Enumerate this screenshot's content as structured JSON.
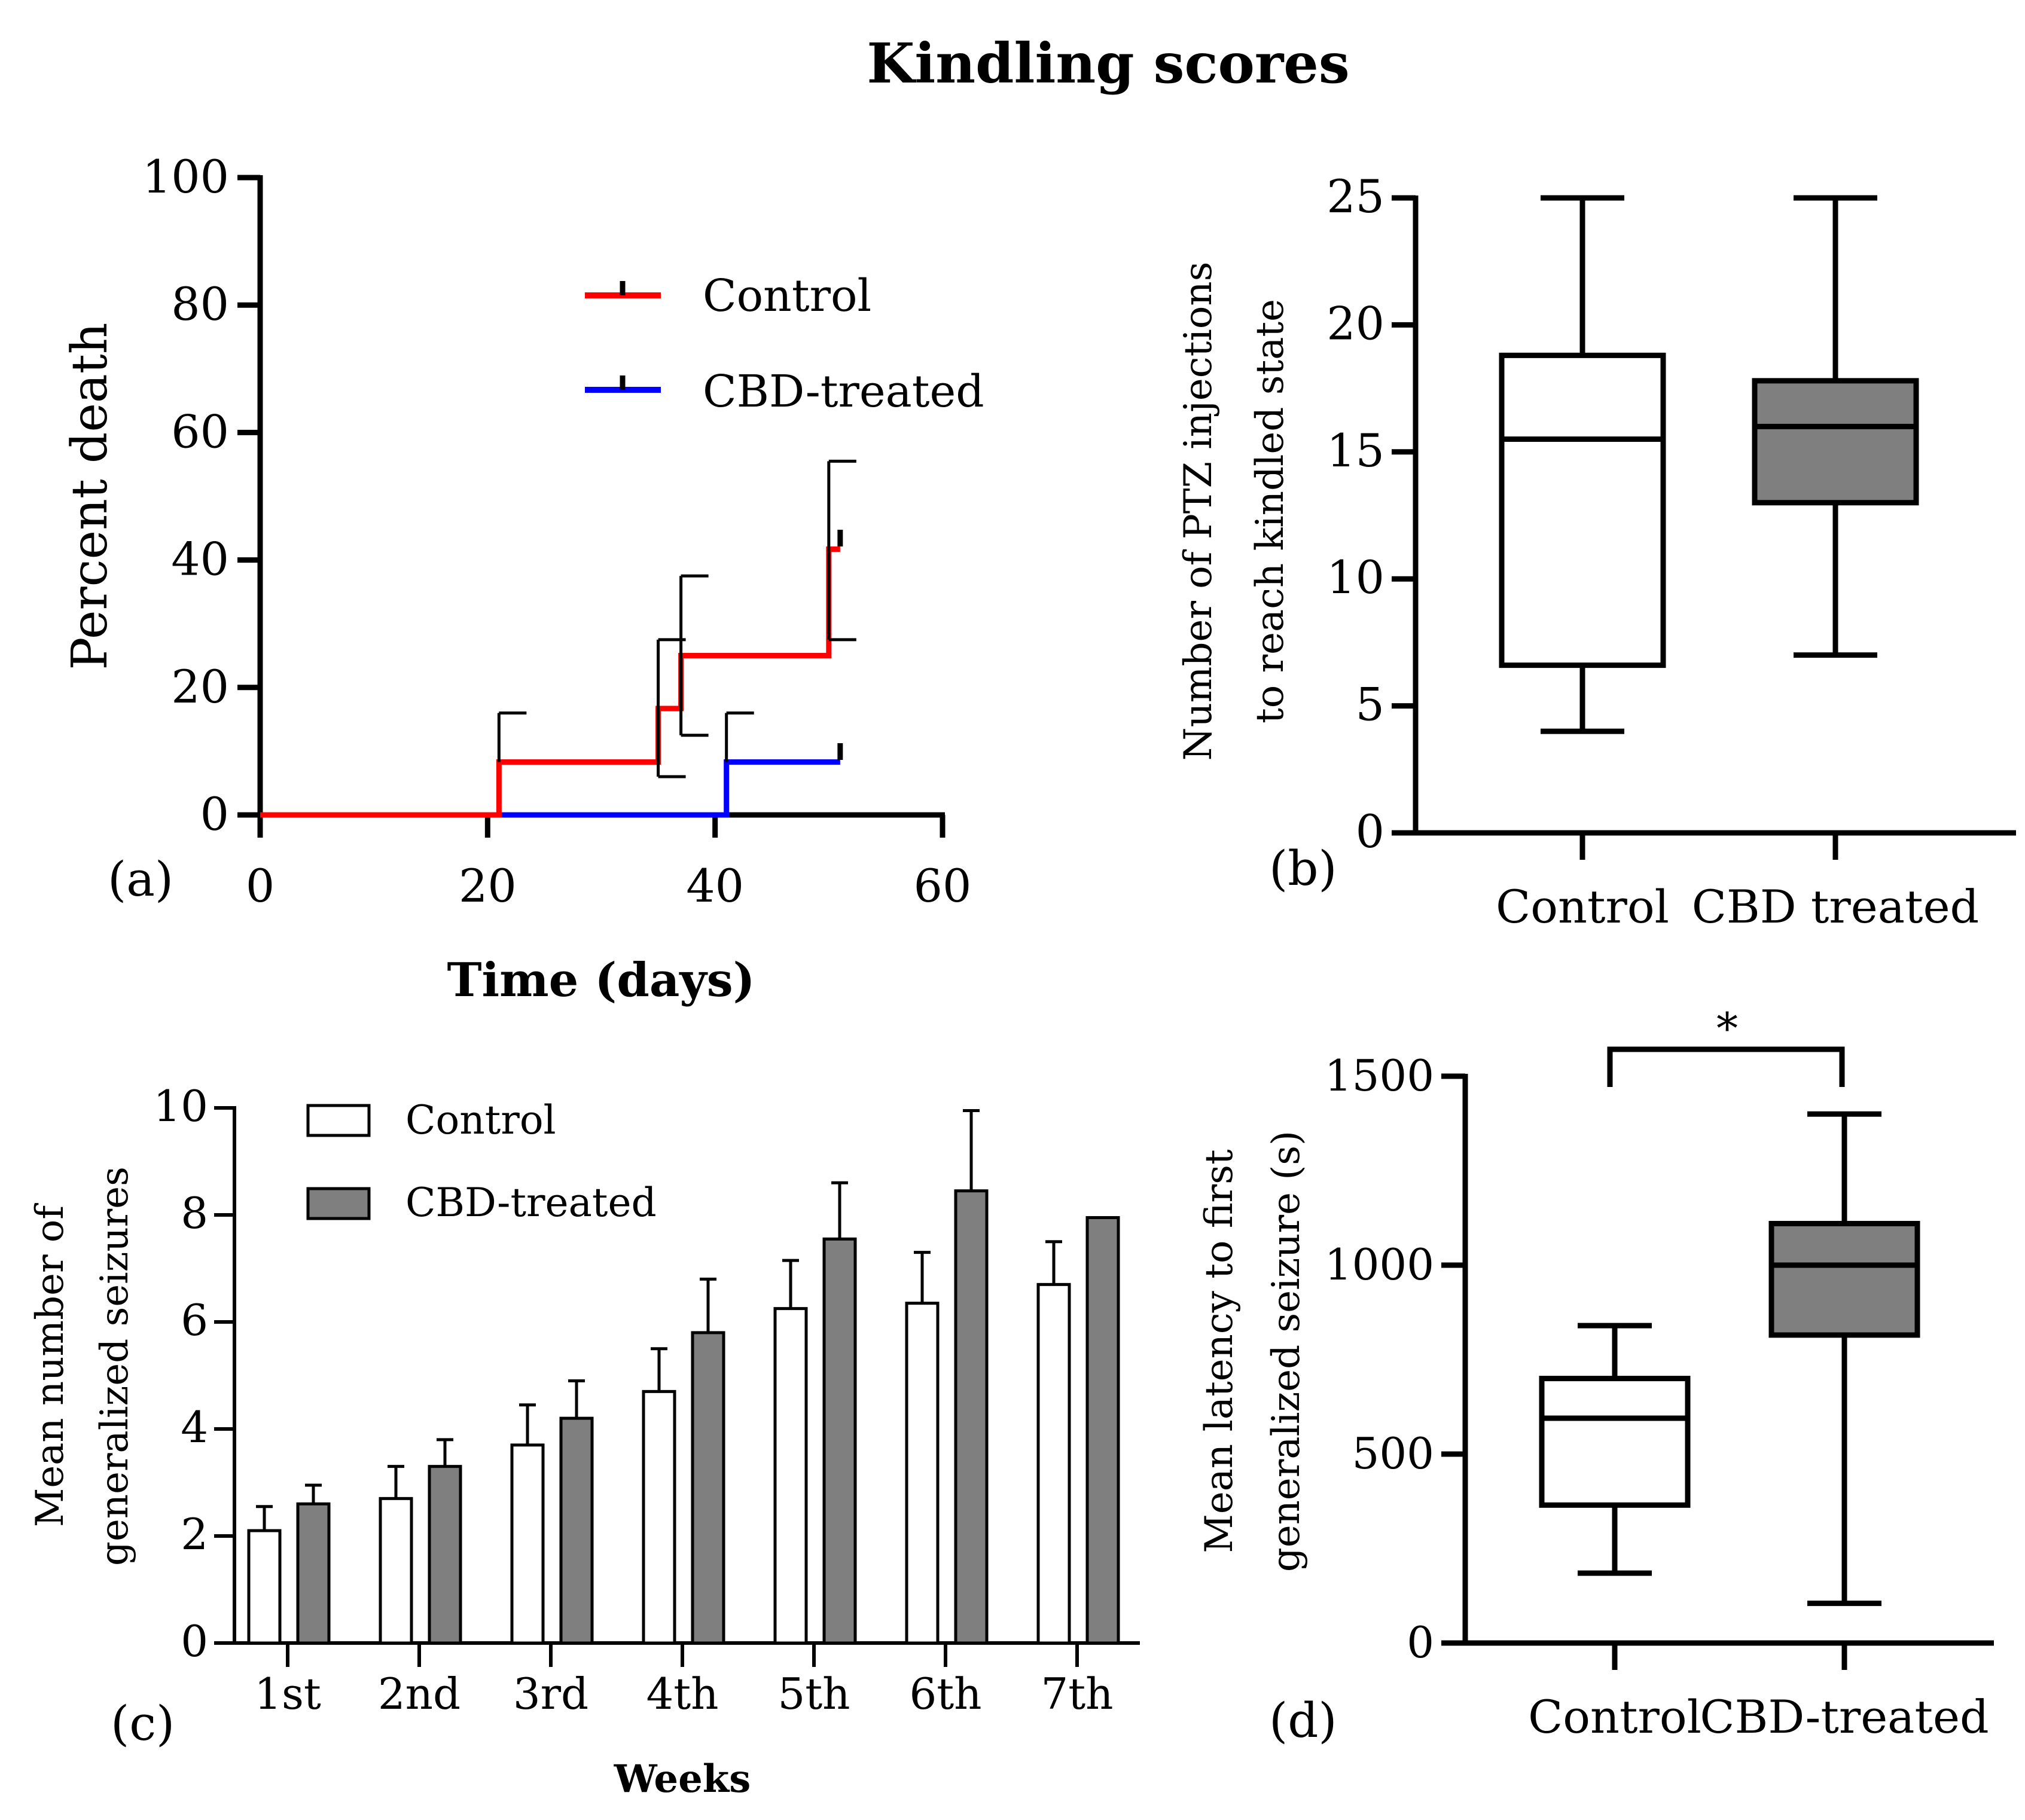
{
  "figure": {
    "title": "Kindling scores",
    "colors": {
      "control_line": "#ff0000",
      "cbd_line": "#0000ff",
      "cbd_fill": "#7f7f7f",
      "control_fill": "#ffffff"
    }
  },
  "chart_data": [
    {
      "panel_label": "(a)",
      "type": "line",
      "title": "",
      "xlabel": "Time (days)",
      "ylabel": "Percent death",
      "xlim": [
        0,
        60
      ],
      "ylim": [
        0,
        100
      ],
      "xticks": [
        "0",
        "20",
        "40",
        "60"
      ],
      "yticks": [
        "0",
        "20",
        "40",
        "60",
        "80",
        "100"
      ],
      "legend": [
        "Control",
        "CBD-treated"
      ],
      "legend_position": "top-right",
      "series": [
        {
          "name": "Control",
          "step": [
            [
              0,
              0
            ],
            [
              21,
              0
            ],
            [
              21,
              8.3
            ],
            [
              35,
              8.3
            ],
            [
              35,
              16.7
            ],
            [
              37,
              16.7
            ],
            [
              37,
              25
            ],
            [
              50,
              25
            ],
            [
              50,
              41.7
            ],
            [
              51,
              41.7
            ]
          ],
          "error_bars": [
            [
              21,
              8.3,
              16
            ],
            [
              35,
              16.7,
              27.5
            ],
            [
              35,
              16.7,
              6
            ],
            [
              37,
              25,
              37.5
            ],
            [
              37,
              25,
              12.5
            ],
            [
              50,
              41.7,
              55.5
            ],
            [
              50,
              41.7,
              27.5
            ]
          ],
          "censor_marks": [
            [
              51,
              42.5
            ]
          ]
        },
        {
          "name": "CBD-treated",
          "step": [
            [
              0,
              0
            ],
            [
              41,
              0
            ],
            [
              41,
              8.3
            ],
            [
              51,
              8.3
            ]
          ],
          "error_bars": [
            [
              41,
              8.3,
              16
            ]
          ],
          "censor_marks": [
            [
              51,
              9
            ]
          ]
        }
      ]
    },
    {
      "panel_label": "(b)",
      "type": "box",
      "title": "",
      "ylabel_lines": [
        "Number of PTZ injections",
        "to reach kindled state"
      ],
      "ylim": [
        0,
        25
      ],
      "yticks": [
        "0",
        "5",
        "10",
        "15",
        "20",
        "25"
      ],
      "categories": [
        "Control",
        "CBD treated"
      ],
      "boxes": [
        {
          "name": "Control",
          "min": 4,
          "q1": 6.6,
          "median": 15.5,
          "q3": 18.8,
          "max": 25
        },
        {
          "name": "CBD treated",
          "min": 7,
          "q1": 13,
          "median": 16,
          "q3": 17.8,
          "max": 25
        }
      ]
    },
    {
      "panel_label": "(c)",
      "type": "bar",
      "title": "",
      "xlabel": "Weeks",
      "ylabel_lines": [
        "Mean number of",
        "generalized seizures"
      ],
      "ylim": [
        0,
        10
      ],
      "yticks": [
        "0",
        "2",
        "4",
        "6",
        "8",
        "10"
      ],
      "categories": [
        "1st",
        "2nd",
        "3rd",
        "4th",
        "5th",
        "6th",
        "7th"
      ],
      "legend": [
        "Control",
        "CBD-treated"
      ],
      "legend_position": "top-left",
      "series": [
        {
          "name": "Control",
          "values": [
            2.1,
            2.7,
            3.7,
            4.7,
            6.25,
            6.35,
            6.7
          ],
          "errors": [
            0.45,
            0.6,
            0.75,
            0.8,
            0.9,
            0.95,
            0.8
          ]
        },
        {
          "name": "CBD-treated",
          "values": [
            2.6,
            3.3,
            4.2,
            5.8,
            7.55,
            8.45,
            7.95
          ],
          "errors": [
            0.35,
            0.5,
            0.7,
            1.0,
            1.05,
            1.5,
            0
          ]
        }
      ]
    },
    {
      "panel_label": "(d)",
      "type": "box",
      "title": "",
      "ylabel_lines": [
        "Mean latency to first",
        "generalized seizure (s)"
      ],
      "ylim": [
        0,
        1500
      ],
      "yticks": [
        "0",
        "500",
        "1000",
        "1500"
      ],
      "categories": [
        "Control",
        "CBD-treated"
      ],
      "significance": "*",
      "boxes": [
        {
          "name": "Control",
          "min": 185,
          "q1": 365,
          "median": 595,
          "q3": 700,
          "max": 840
        },
        {
          "name": "CBD-treated",
          "min": 105,
          "q1": 815,
          "median": 1000,
          "q3": 1110,
          "max": 1400
        }
      ]
    }
  ]
}
